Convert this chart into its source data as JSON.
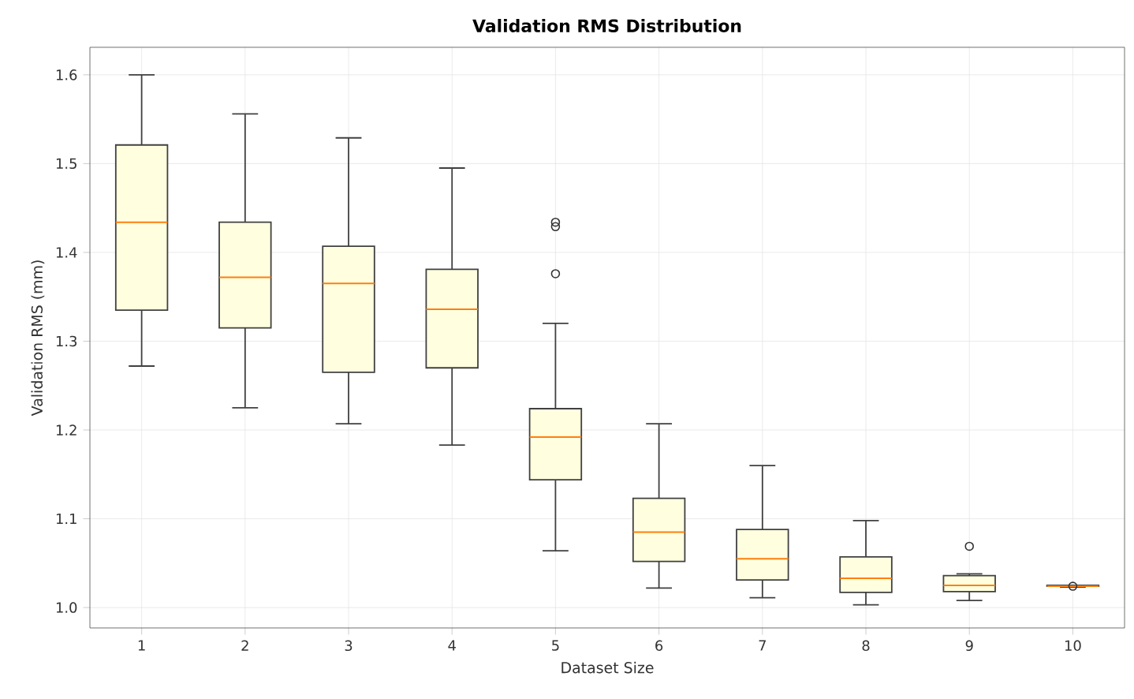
{
  "chart_data": {
    "type": "box",
    "title": "Validation RMS Distribution",
    "xlabel": "Dataset Size",
    "ylabel": "Validation RMS (mm)",
    "categories": [
      "1",
      "2",
      "3",
      "4",
      "5",
      "6",
      "7",
      "8",
      "9",
      "10"
    ],
    "color": "#ffffe0",
    "marker": "circle",
    "grid": true,
    "ylim": [
      0.977,
      1.631
    ],
    "yticks": [
      {
        "value": 1.0,
        "label": "1.0"
      },
      {
        "value": 1.1,
        "label": "1.1"
      },
      {
        "value": 1.2,
        "label": "1.2"
      },
      {
        "value": 1.3,
        "label": "1.3"
      },
      {
        "value": 1.4,
        "label": "1.4"
      },
      {
        "value": 1.5,
        "label": "1.5"
      },
      {
        "value": 1.6,
        "label": "1.6"
      }
    ],
    "boxes": [
      {
        "low": 1.272,
        "q1": 1.335,
        "median": 1.434,
        "q3": 1.521,
        "high": 1.6
      },
      {
        "low": 1.225,
        "q1": 1.315,
        "median": 1.372,
        "q3": 1.434,
        "high": 1.556
      },
      {
        "low": 1.207,
        "q1": 1.265,
        "median": 1.365,
        "q3": 1.407,
        "high": 1.529
      },
      {
        "low": 1.183,
        "q1": 1.27,
        "median": 1.336,
        "q3": 1.381,
        "high": 1.495
      },
      {
        "low": 1.064,
        "q1": 1.144,
        "median": 1.192,
        "q3": 1.224,
        "high": 1.32,
        "outliers": [
          1.434,
          1.429,
          1.376
        ]
      },
      {
        "low": 1.022,
        "q1": 1.052,
        "median": 1.085,
        "q3": 1.123,
        "high": 1.207
      },
      {
        "low": 1.011,
        "q1": 1.031,
        "median": 1.055,
        "q3": 1.088,
        "high": 1.16
      },
      {
        "low": 1.003,
        "q1": 1.017,
        "median": 1.033,
        "q3": 1.057,
        "high": 1.098
      },
      {
        "low": 1.008,
        "q1": 1.018,
        "median": 1.025,
        "q3": 1.036,
        "high": 1.038,
        "outliers": [
          1.069
        ]
      },
      {
        "low": 1.023,
        "q1": 1.024,
        "median": 1.024,
        "q3": 1.025,
        "high": 1.025,
        "outliers": [
          1.024
        ]
      }
    ]
  }
}
